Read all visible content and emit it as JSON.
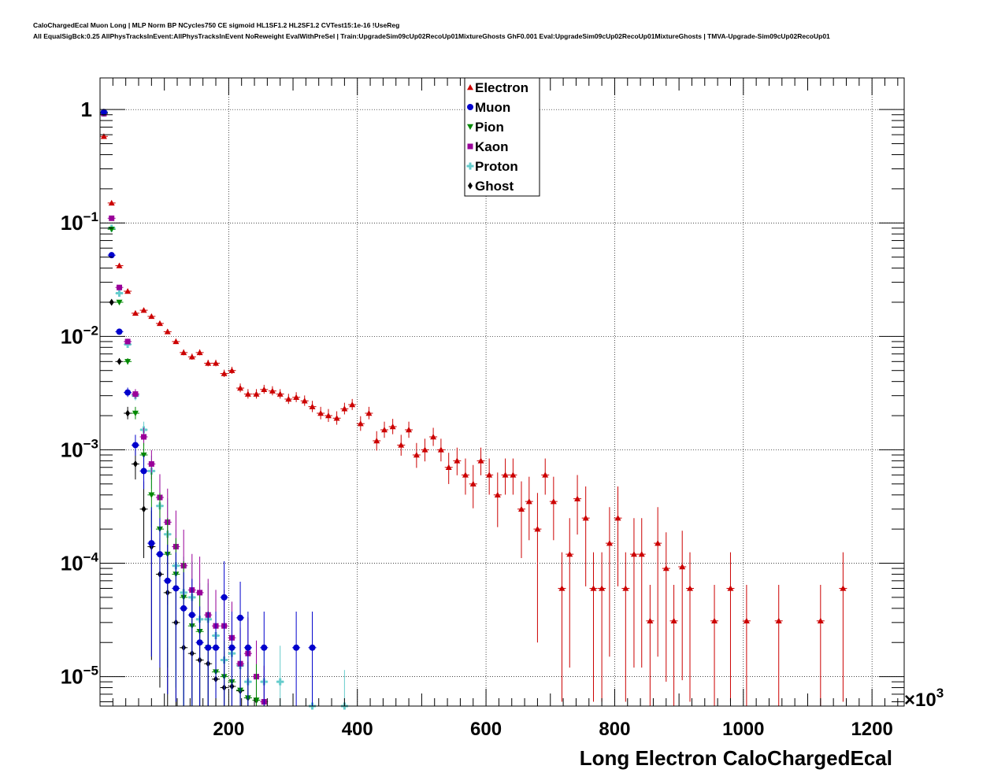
{
  "header": {
    "title_line1": "CaloChargedEcal Muon Long | MLP Norm BP NCycles750 CE sigmoid HL1SF1.2 HL2SF1.2 CVTest15:1e-16 !UseReg",
    "title_line2": "All EqualSigBck:0.25 AllPhysTracksInEvent:AllPhysTracksInEvent NoReweight EvalWithPreSel | Train:UpgradeSim09cUp02RecoUp01MixtureGhosts GhF0.001 Eval:UpgradeSim09cUp02RecoUp01MixtureGhosts | TMVA-Upgrade-Sim09cUp02RecoUp01"
  },
  "chart_data": {
    "type": "scatter",
    "xlabel": "Long Electron CaloChargedEcal",
    "x_multiplier": "×10",
    "x_multiplier_exp": "3",
    "xlim": [
      0,
      1250
    ],
    "ylim": [
      5.5e-06,
      1.9
    ],
    "yscale": "log",
    "grid": true,
    "legend_position": "top-center",
    "x_ticks": [
      200,
      400,
      600,
      800,
      1000,
      1200
    ],
    "x_tick_labels": [
      "200",
      "400",
      "600",
      "800",
      "1000",
      "1200"
    ],
    "y_tick_labels": [
      {
        "value": 1,
        "base": "1",
        "exp": ""
      },
      {
        "value": 0.1,
        "base": "10",
        "exp": "−1"
      },
      {
        "value": 0.01,
        "base": "10",
        "exp": "−2"
      },
      {
        "value": 0.001,
        "base": "10",
        "exp": "−3"
      },
      {
        "value": 0.0001,
        "base": "10",
        "exp": "−4"
      },
      {
        "value": 1e-05,
        "base": "10",
        "exp": "−5"
      }
    ],
    "series": [
      {
        "name": "Electron",
        "color": "#cc0000",
        "marker": "triangle-up",
        "points": [
          [
            6,
            0.58
          ],
          [
            18,
            0.15
          ],
          [
            30,
            0.042
          ],
          [
            43,
            0.025
          ],
          [
            55,
            0.016
          ],
          [
            68,
            0.017
          ],
          [
            80,
            0.015
          ],
          [
            93,
            0.013
          ],
          [
            105,
            0.011
          ],
          [
            118,
            0.009
          ],
          [
            130,
            0.0072
          ],
          [
            143,
            0.0066
          ],
          [
            155,
            0.0072
          ],
          [
            168,
            0.0058
          ],
          [
            180,
            0.0058
          ],
          [
            193,
            0.0047
          ],
          [
            205,
            0.005
          ],
          [
            218,
            0.0035
          ],
          [
            230,
            0.0031
          ],
          [
            243,
            0.0031
          ],
          [
            255,
            0.0034
          ],
          [
            268,
            0.0033
          ],
          [
            280,
            0.0031
          ],
          [
            293,
            0.0028
          ],
          [
            305,
            0.0029
          ],
          [
            318,
            0.0027
          ],
          [
            330,
            0.0024
          ],
          [
            343,
            0.0021
          ],
          [
            355,
            0.002
          ],
          [
            368,
            0.0019
          ],
          [
            380,
            0.0023
          ],
          [
            392,
            0.0025
          ],
          [
            405,
            0.0017
          ],
          [
            418,
            0.0021
          ],
          [
            430,
            0.0012
          ],
          [
            442,
            0.0015
          ],
          [
            455,
            0.0016
          ],
          [
            468,
            0.0011
          ],
          [
            480,
            0.0015
          ],
          [
            492,
            0.0009
          ],
          [
            505,
            0.001
          ],
          [
            518,
            0.0013
          ],
          [
            530,
            0.001
          ],
          [
            542,
            0.0007
          ],
          [
            555,
            0.0008
          ],
          [
            568,
            0.0006
          ],
          [
            580,
            0.0005
          ],
          [
            592,
            0.0008
          ],
          [
            605,
            0.0006
          ],
          [
            618,
            0.0004
          ],
          [
            630,
            0.0006
          ],
          [
            642,
            0.0006
          ],
          [
            655,
            0.0003
          ],
          [
            667,
            0.00035
          ],
          [
            680,
            0.0002
          ],
          [
            692,
            0.0006
          ],
          [
            705,
            0.00035
          ],
          [
            718,
            6e-05
          ],
          [
            730,
            0.00012
          ],
          [
            742,
            0.00037
          ],
          [
            755,
            0.00025
          ],
          [
            767,
            6e-05
          ],
          [
            780,
            6e-05
          ],
          [
            792,
            0.00015
          ],
          [
            805,
            0.00025
          ],
          [
            817,
            6e-05
          ],
          [
            830,
            0.00012
          ],
          [
            842,
            0.00012
          ],
          [
            855,
            3.1e-05
          ],
          [
            867,
            0.00015
          ],
          [
            880,
            9e-05
          ],
          [
            892,
            3.1e-05
          ],
          [
            905,
            9.3e-05
          ],
          [
            917,
            6e-05
          ],
          [
            955,
            3.1e-05
          ],
          [
            980,
            6e-05
          ],
          [
            1005,
            3.1e-05
          ],
          [
            1055,
            3.1e-05
          ],
          [
            1120,
            3.1e-05
          ],
          [
            1155,
            6e-05
          ]
        ]
      },
      {
        "name": "Muon",
        "color": "#0000cc",
        "marker": "circle",
        "points": [
          [
            6,
            0.95
          ],
          [
            18,
            0.052
          ],
          [
            30,
            0.011
          ],
          [
            43,
            0.0032
          ],
          [
            55,
            0.0011
          ],
          [
            68,
            0.00065
          ],
          [
            80,
            0.00015
          ],
          [
            93,
            0.00012
          ],
          [
            105,
            7e-05
          ],
          [
            118,
            6e-05
          ],
          [
            130,
            4e-05
          ],
          [
            143,
            3.5e-05
          ],
          [
            155,
            2e-05
          ],
          [
            168,
            1.8e-05
          ],
          [
            180,
            1.8e-05
          ],
          [
            193,
            5e-05
          ],
          [
            205,
            1.8e-05
          ],
          [
            218,
            3.3e-05
          ],
          [
            230,
            1.8e-05
          ],
          [
            255,
            1.8e-05
          ],
          [
            305,
            1.8e-05
          ],
          [
            330,
            1.8e-05
          ]
        ]
      },
      {
        "name": "Pion",
        "color": "#008800",
        "marker": "triangle-down",
        "points": [
          [
            6,
            0.93
          ],
          [
            18,
            0.088
          ],
          [
            30,
            0.02
          ],
          [
            43,
            0.006
          ],
          [
            55,
            0.0021
          ],
          [
            68,
            0.0009
          ],
          [
            80,
            0.0004
          ],
          [
            93,
            0.0002
          ],
          [
            105,
            0.00012
          ],
          [
            118,
            8e-05
          ],
          [
            130,
            5e-05
          ],
          [
            143,
            2.8e-05
          ],
          [
            155,
            2.5e-05
          ],
          [
            168,
            1.8e-05
          ],
          [
            180,
            1.1e-05
          ],
          [
            193,
            1e-05
          ],
          [
            205,
            9e-06
          ],
          [
            218,
            7.6e-06
          ],
          [
            230,
            6.5e-06
          ],
          [
            243,
            6.2e-06
          ]
        ]
      },
      {
        "name": "Kaon",
        "color": "#990099",
        "marker": "square",
        "points": [
          [
            6,
            0.92
          ],
          [
            18,
            0.11
          ],
          [
            30,
            0.027
          ],
          [
            43,
            0.009
          ],
          [
            55,
            0.0031
          ],
          [
            68,
            0.0013
          ],
          [
            80,
            0.00075
          ],
          [
            93,
            0.00038
          ],
          [
            105,
            0.00023
          ],
          [
            118,
            0.00014
          ],
          [
            130,
            9.5e-05
          ],
          [
            143,
            5.8e-05
          ],
          [
            155,
            5.5e-05
          ],
          [
            168,
            3.5e-05
          ],
          [
            180,
            2.8e-05
          ],
          [
            193,
            2.8e-05
          ],
          [
            205,
            2.2e-05
          ],
          [
            218,
            1.3e-05
          ],
          [
            230,
            1.6e-05
          ],
          [
            243,
            1e-05
          ],
          [
            255,
            6e-06
          ]
        ]
      },
      {
        "name": "Proton",
        "color": "#66cccc",
        "marker": "cross",
        "points": [
          [
            6,
            0.93
          ],
          [
            18,
            0.09
          ],
          [
            30,
            0.024
          ],
          [
            43,
            0.0085
          ],
          [
            55,
            0.003
          ],
          [
            68,
            0.0015
          ],
          [
            80,
            0.00065
          ],
          [
            93,
            0.00032
          ],
          [
            105,
            0.00018
          ],
          [
            118,
            9.5e-05
          ],
          [
            130,
            5.5e-05
          ],
          [
            143,
            5e-05
          ],
          [
            155,
            3.2e-05
          ],
          [
            168,
            3.2e-05
          ],
          [
            180,
            2.3e-05
          ],
          [
            193,
            1.4e-05
          ],
          [
            205,
            1.6e-05
          ],
          [
            218,
            1.25e-05
          ],
          [
            230,
            9e-06
          ],
          [
            255,
            9e-06
          ],
          [
            280,
            9e-06
          ],
          [
            330,
            5.5e-06
          ],
          [
            380,
            5.5e-06
          ]
        ]
      },
      {
        "name": "Ghost",
        "color": "#000000",
        "marker": "diamond",
        "points": [
          [
            6,
            0.95
          ],
          [
            18,
            0.02
          ],
          [
            30,
            0.006
          ],
          [
            43,
            0.0021
          ],
          [
            55,
            0.00075
          ],
          [
            68,
            0.0003
          ],
          [
            80,
            0.00014
          ],
          [
            93,
            8e-05
          ],
          [
            105,
            5.5e-05
          ],
          [
            118,
            3e-05
          ],
          [
            130,
            1.8e-05
          ],
          [
            143,
            1.6e-05
          ],
          [
            155,
            1.4e-05
          ],
          [
            168,
            1.3e-05
          ],
          [
            180,
            9.5e-06
          ],
          [
            193,
            8e-06
          ],
          [
            205,
            8.2e-06
          ],
          [
            218,
            7.5e-06
          ],
          [
            230,
            6.5e-06
          ],
          [
            243,
            6.2e-06
          ]
        ]
      }
    ]
  }
}
